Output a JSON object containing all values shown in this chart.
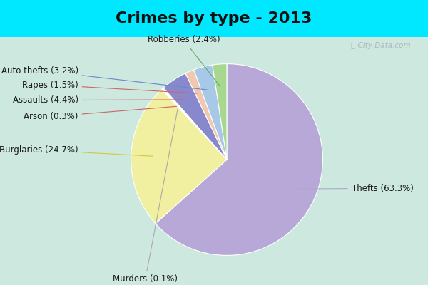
{
  "title": "Crimes by type - 2013",
  "labels": [
    "Thefts",
    "Burglaries",
    "Murders",
    "Arson",
    "Assaults",
    "Rapes",
    "Auto thefts",
    "Robberies"
  ],
  "percentages": [
    63.3,
    24.7,
    0.1,
    0.3,
    4.4,
    1.5,
    3.2,
    2.4
  ],
  "colors": [
    "#b8a8d8",
    "#f0f0a0",
    "#e8e8e8",
    "#ffffff",
    "#8888cc",
    "#f0c8b0",
    "#a8c8e8",
    "#a8d890"
  ],
  "background_top": "#00e8ff",
  "background_main_top": "#d0e8e0",
  "background_main_bottom": "#c8e0d8",
  "title_fontsize": 16,
  "label_fontsize": 9
}
